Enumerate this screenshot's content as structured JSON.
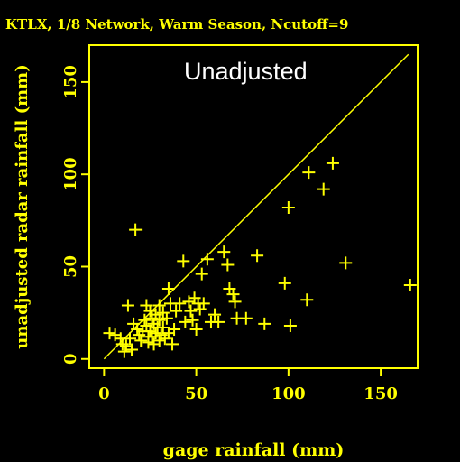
{
  "chart_data": {
    "type": "scatter",
    "title": "KTLX, 1/8 Network, Warm Season, Ncutoff=9",
    "annotation": "Unadjusted",
    "xlabel": "gage rainfall (mm)",
    "ylabel": "unadjusted radar rainfall (mm)",
    "xlim": [
      -8,
      170
    ],
    "ylim": [
      -5,
      170
    ],
    "xticks": [
      0,
      50,
      100,
      150
    ],
    "yticks": [
      0,
      50,
      100,
      150
    ],
    "reference_line": "y = x",
    "grid": false,
    "colors": {
      "background": "#000000",
      "axes": "#ffff00",
      "markers": "#ffff00",
      "annotation": "#ffffff"
    },
    "points": [
      {
        "x": 3,
        "y": 14
      },
      {
        "x": 6,
        "y": 13
      },
      {
        "x": 9,
        "y": 11
      },
      {
        "x": 10,
        "y": 8
      },
      {
        "x": 11,
        "y": 4
      },
      {
        "x": 12,
        "y": 7
      },
      {
        "x": 13,
        "y": 29
      },
      {
        "x": 14,
        "y": 11
      },
      {
        "x": 15,
        "y": 5
      },
      {
        "x": 16,
        "y": 19
      },
      {
        "x": 17,
        "y": 70
      },
      {
        "x": 18,
        "y": 16
      },
      {
        "x": 19,
        "y": 13
      },
      {
        "x": 20,
        "y": 10
      },
      {
        "x": 21,
        "y": 15
      },
      {
        "x": 22,
        "y": 21
      },
      {
        "x": 23,
        "y": 29
      },
      {
        "x": 23,
        "y": 18
      },
      {
        "x": 24,
        "y": 9
      },
      {
        "x": 24,
        "y": 12
      },
      {
        "x": 25,
        "y": 26
      },
      {
        "x": 25,
        "y": 15
      },
      {
        "x": 26,
        "y": 22
      },
      {
        "x": 26,
        "y": 12
      },
      {
        "x": 27,
        "y": 19
      },
      {
        "x": 27,
        "y": 8
      },
      {
        "x": 28,
        "y": 24
      },
      {
        "x": 28,
        "y": 14
      },
      {
        "x": 29,
        "y": 17
      },
      {
        "x": 30,
        "y": 29
      },
      {
        "x": 30,
        "y": 21
      },
      {
        "x": 30,
        "y": 10
      },
      {
        "x": 31,
        "y": 13
      },
      {
        "x": 32,
        "y": 25
      },
      {
        "x": 32,
        "y": 17
      },
      {
        "x": 33,
        "y": 11
      },
      {
        "x": 34,
        "y": 22
      },
      {
        "x": 35,
        "y": 14
      },
      {
        "x": 35,
        "y": 38
      },
      {
        "x": 36,
        "y": 30
      },
      {
        "x": 37,
        "y": 8
      },
      {
        "x": 38,
        "y": 16
      },
      {
        "x": 39,
        "y": 26
      },
      {
        "x": 41,
        "y": 30
      },
      {
        "x": 43,
        "y": 53
      },
      {
        "x": 44,
        "y": 20
      },
      {
        "x": 46,
        "y": 31
      },
      {
        "x": 47,
        "y": 26
      },
      {
        "x": 48,
        "y": 21
      },
      {
        "x": 49,
        "y": 33
      },
      {
        "x": 50,
        "y": 16
      },
      {
        "x": 51,
        "y": 30
      },
      {
        "x": 52,
        "y": 27
      },
      {
        "x": 53,
        "y": 46
      },
      {
        "x": 54,
        "y": 30
      },
      {
        "x": 56,
        "y": 54
      },
      {
        "x": 58,
        "y": 20
      },
      {
        "x": 60,
        "y": 24
      },
      {
        "x": 62,
        "y": 20
      },
      {
        "x": 65,
        "y": 58
      },
      {
        "x": 67,
        "y": 51
      },
      {
        "x": 68,
        "y": 38
      },
      {
        "x": 70,
        "y": 35
      },
      {
        "x": 71,
        "y": 31
      },
      {
        "x": 72,
        "y": 22
      },
      {
        "x": 77,
        "y": 22
      },
      {
        "x": 83,
        "y": 56
      },
      {
        "x": 87,
        "y": 19
      },
      {
        "x": 98,
        "y": 41
      },
      {
        "x": 100,
        "y": 82
      },
      {
        "x": 101,
        "y": 18
      },
      {
        "x": 110,
        "y": 32
      },
      {
        "x": 111,
        "y": 101
      },
      {
        "x": 119,
        "y": 92
      },
      {
        "x": 124,
        "y": 106
      },
      {
        "x": 131,
        "y": 52
      },
      {
        "x": 166,
        "y": 40
      }
    ]
  }
}
